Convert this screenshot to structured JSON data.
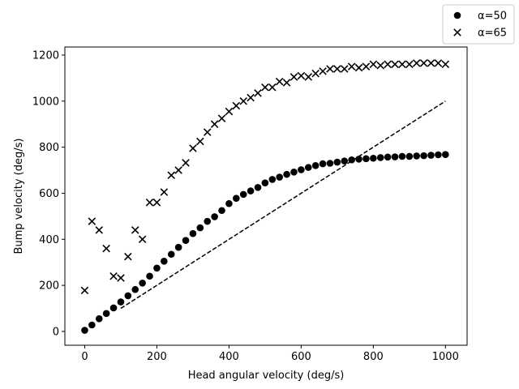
{
  "chart_data": {
    "type": "scatter",
    "xlabel": "Head angular velocity (deg/s)",
    "ylabel": "Bump velocity (deg/s)",
    "xlim": [
      -55,
      1060
    ],
    "ylim": [
      -60,
      1235
    ],
    "xticks": [
      0,
      200,
      400,
      600,
      800,
      1000
    ],
    "yticks": [
      0,
      200,
      400,
      600,
      800,
      1000,
      1200
    ],
    "grid": false,
    "legend_position": "top-right, outside axes",
    "series": [
      {
        "name": "α=50",
        "marker": "circle",
        "color": "#000000",
        "x": [
          0,
          20,
          40,
          60,
          80,
          100,
          120,
          140,
          160,
          180,
          200,
          220,
          240,
          260,
          280,
          300,
          320,
          340,
          360,
          380,
          400,
          420,
          440,
          460,
          480,
          500,
          520,
          540,
          560,
          580,
          600,
          620,
          640,
          660,
          680,
          700,
          720,
          740,
          760,
          780,
          800,
          820,
          840,
          860,
          880,
          900,
          920,
          940,
          960,
          980,
          1000
        ],
        "y": [
          5,
          28,
          55,
          78,
          102,
          128,
          155,
          182,
          210,
          240,
          275,
          305,
          335,
          365,
          395,
          425,
          450,
          478,
          498,
          525,
          555,
          578,
          595,
          610,
          625,
          645,
          660,
          670,
          682,
          692,
          702,
          712,
          720,
          728,
          730,
          735,
          740,
          745,
          748,
          750,
          752,
          755,
          757,
          758,
          760,
          760,
          762,
          763,
          765,
          767,
          768
        ]
      },
      {
        "name": "α=65",
        "marker": "x",
        "color": "#000000",
        "x": [
          0,
          20,
          40,
          60,
          80,
          100,
          120,
          140,
          160,
          180,
          200,
          220,
          240,
          260,
          280,
          300,
          320,
          340,
          360,
          380,
          400,
          420,
          440,
          460,
          480,
          500,
          520,
          540,
          560,
          580,
          600,
          620,
          640,
          660,
          680,
          700,
          720,
          740,
          760,
          780,
          800,
          820,
          840,
          860,
          880,
          900,
          920,
          940,
          960,
          980,
          1000
        ],
        "y": [
          178,
          478,
          440,
          360,
          240,
          232,
          325,
          440,
          400,
          560,
          560,
          605,
          678,
          700,
          732,
          795,
          825,
          865,
          900,
          925,
          955,
          980,
          1000,
          1015,
          1035,
          1060,
          1060,
          1085,
          1080,
          1105,
          1110,
          1105,
          1120,
          1130,
          1140,
          1140,
          1140,
          1150,
          1145,
          1150,
          1160,
          1155,
          1160,
          1160,
          1160,
          1160,
          1165,
          1165,
          1165,
          1165,
          1160
        ]
      }
    ],
    "reference_line": {
      "style": "dashed",
      "color": "#000000",
      "x": [
        100,
        1000
      ],
      "y": [
        100,
        1000
      ]
    }
  }
}
